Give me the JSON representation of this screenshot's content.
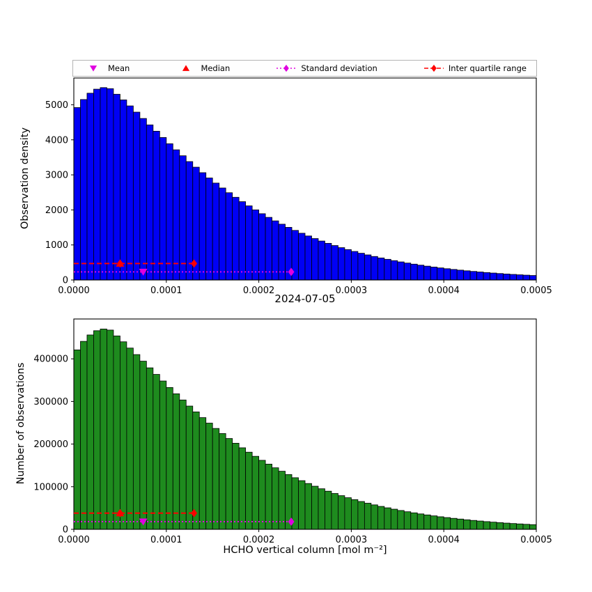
{
  "figure": {
    "title": "2024-07-05",
    "xlabel": "HCHO vertical column [mol m⁻²]"
  },
  "colors": {
    "mean": "#E000E0",
    "median": "#FF0000",
    "std": "#E000E0",
    "iqr": "#FF0000",
    "top_bars": "#0000F5",
    "bottom_bars": "#1E8B1E"
  },
  "legend": {
    "items": [
      {
        "label": "Mean",
        "marker": "triangle-down",
        "color": "#E000E0",
        "line": "none"
      },
      {
        "label": "Median",
        "marker": "triangle-up",
        "color": "#FF0000",
        "line": "none"
      },
      {
        "label": "Standard deviation",
        "marker": "diamond",
        "color": "#E000E0",
        "line": "dotted"
      },
      {
        "label": "Inter quartile range",
        "marker": "diamond",
        "color": "#FF0000",
        "line": "dashed"
      }
    ]
  },
  "chart_data": [
    {
      "type": "bar",
      "subtype": "histogram",
      "title": "",
      "ylabel": "Observation density",
      "bar_color": "#0000F5",
      "bin_start": 0,
      "bin_width": 7.142857e-06,
      "xlim": [
        0,
        0.0005
      ],
      "ylim": [
        0,
        5764
      ],
      "grid": false,
      "x_ticks": [
        0,
        0.0001,
        0.0002,
        0.0003,
        0.0004,
        0.0005
      ],
      "x_tick_labels": [
        "0.0000",
        "0.0001",
        "0.0002",
        "0.0003",
        "0.0004",
        "0.0005"
      ],
      "y_ticks": [
        0,
        1000,
        2000,
        3000,
        4000,
        5000
      ],
      "y_tick_labels": [
        "0",
        "1000",
        "2000",
        "3000",
        "4000",
        "5000"
      ],
      "values": [
        4920,
        5150,
        5330,
        5445,
        5490,
        5460,
        5301,
        5140,
        4968,
        4790,
        4609,
        4426,
        4246,
        4066,
        3888,
        3715,
        3545,
        3379,
        3219,
        3062,
        2911,
        2765,
        2625,
        2490,
        2360,
        2235,
        2115,
        2001,
        1891,
        1787,
        1687,
        1592,
        1502,
        1415,
        1334,
        1256,
        1182,
        1112,
        1046,
        983,
        923,
        867,
        814,
        763,
        716,
        671,
        629,
        590,
        552,
        516,
        483,
        452,
        423,
        395,
        369,
        345,
        322,
        301,
        281,
        262,
        244,
        228,
        212,
        198,
        184,
        171,
        159,
        148,
        138,
        128
      ],
      "stats": {
        "mean_x": 7.5e-05,
        "median_x": 5e-05,
        "iqr_low_x": 5e-05,
        "iqr_high_x": 0.00013,
        "std_x": 0.000235,
        "iqr_line_y": 470,
        "std_line_y": 230
      }
    },
    {
      "type": "bar",
      "subtype": "histogram",
      "title": "2024-07-05",
      "ylabel": "Number of observations",
      "xlabel": "HCHO vertical column [mol m⁻²]",
      "bar_color": "#1E8B1E",
      "bin_start": 0,
      "bin_width": 7.142857e-06,
      "xlim": [
        0,
        0.0005
      ],
      "ylim": [
        0,
        493500
      ],
      "grid": false,
      "x_ticks": [
        0,
        0.0001,
        0.0002,
        0.0003,
        0.0004,
        0.0005
      ],
      "x_tick_labels": [
        "0.0000",
        "0.0001",
        "0.0002",
        "0.0003",
        "0.0004",
        "0.0005"
      ],
      "y_ticks": [
        0,
        100000,
        200000,
        300000,
        400000
      ],
      "y_tick_labels": [
        "0",
        "100000",
        "200000",
        "300000",
        "400000"
      ],
      "values": [
        421000,
        441000,
        456000,
        466000,
        470000,
        467500,
        453800,
        440000,
        425300,
        410000,
        394500,
        378900,
        363500,
        348000,
        332800,
        318000,
        303500,
        289200,
        275500,
        262100,
        249200,
        236700,
        224700,
        213100,
        202000,
        191300,
        181000,
        171300,
        161900,
        153000,
        144400,
        136300,
        128600,
        121100,
        114200,
        107500,
        101200,
        95200,
        89500,
        84100,
        79000,
        74200,
        69700,
        65300,
        61300,
        57400,
        53800,
        50500,
        47300,
        44200,
        41300,
        38700,
        36200,
        33800,
        31600,
        29500,
        27600,
        25800,
        24100,
        22400,
        20900,
        19500,
        18100,
        16900,
        15700,
        14600,
        13600,
        12700,
        11800,
        11000
      ],
      "stats": {
        "mean_x": 7.5e-05,
        "median_x": 5e-05,
        "iqr_low_x": 5e-05,
        "iqr_high_x": 0.00013,
        "std_x": 0.000235,
        "iqr_line_y": 38000,
        "std_line_y": 18000
      }
    }
  ]
}
